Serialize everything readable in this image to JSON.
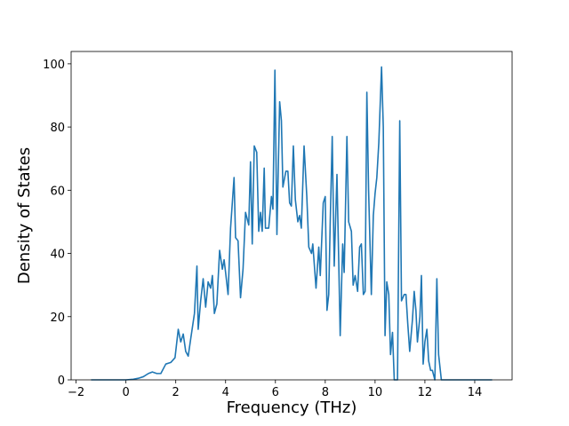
{
  "chart_data": {
    "type": "line",
    "x_label": "Frequency (THz)",
    "y_label": "Density of States",
    "x": [
      -1.4,
      -0.5,
      0,
      0.3,
      0.5,
      0.7,
      0.9,
      1.06,
      1.24,
      1.4,
      1.6,
      1.8,
      1.97,
      2.1,
      2.2,
      2.3,
      2.4,
      2.5,
      2.6,
      2.75,
      2.85,
      2.9,
      3.0,
      3.1,
      3.2,
      3.3,
      3.4,
      3.47,
      3.55,
      3.65,
      3.76,
      3.87,
      3.94,
      4.0,
      4.1,
      4.2,
      4.34,
      4.4,
      4.5,
      4.6,
      4.7,
      4.8,
      4.93,
      5.0,
      5.07,
      5.15,
      5.25,
      5.33,
      5.4,
      5.47,
      5.55,
      5.6,
      5.73,
      5.84,
      5.9,
      5.98,
      6.06,
      6.17,
      6.24,
      6.3,
      6.42,
      6.5,
      6.57,
      6.64,
      6.72,
      6.8,
      6.9,
      6.97,
      7.04,
      7.15,
      7.26,
      7.34,
      7.45,
      7.5,
      7.63,
      7.74,
      7.8,
      7.92,
      8.0,
      8.07,
      8.14,
      8.2,
      8.28,
      8.36,
      8.47,
      8.54,
      8.6,
      8.7,
      8.76,
      8.87,
      8.94,
      9.05,
      9.12,
      9.2,
      9.3,
      9.38,
      9.45,
      9.53,
      9.6,
      9.67,
      9.74,
      9.85,
      9.93,
      10.0,
      10.07,
      10.15,
      10.26,
      10.33,
      10.4,
      10.47,
      10.55,
      10.62,
      10.7,
      10.77,
      10.84,
      10.9,
      10.99,
      11.06,
      11.17,
      11.24,
      11.31,
      11.39,
      11.5,
      11.57,
      11.64,
      11.7,
      11.8,
      11.86,
      11.93,
      12.0,
      12.08,
      12.15,
      12.23,
      12.3,
      12.4,
      12.48,
      12.55,
      12.66,
      12.73,
      13.5,
      14.7
    ],
    "series": [
      {
        "name": "DOS",
        "color": "#1f77b4",
        "values": [
          0,
          0,
          0,
          0.2,
          0.5,
          1,
          2,
          2.5,
          2,
          2,
          5,
          5.5,
          7,
          16,
          12,
          14.5,
          9,
          7.5,
          13,
          21,
          36,
          16,
          25,
          32,
          23,
          31,
          29,
          33,
          21,
          24,
          41,
          35,
          38,
          34,
          27,
          48,
          64,
          45,
          44,
          26,
          35,
          53,
          49,
          69,
          43,
          74,
          72,
          47,
          53,
          47,
          67,
          48,
          48,
          58,
          54,
          98,
          46,
          88,
          82,
          61,
          66,
          66,
          56,
          55,
          74,
          57,
          50,
          52,
          48,
          74,
          58,
          42,
          40,
          43,
          29,
          42,
          33,
          56,
          58,
          22,
          27,
          50,
          77,
          36,
          65,
          38,
          14,
          43,
          34,
          77,
          50,
          47,
          30,
          33,
          28,
          42,
          43,
          27,
          28,
          91,
          60,
          27,
          52,
          59,
          64,
          75,
          99,
          80,
          14,
          31,
          27,
          8,
          15,
          0,
          0,
          0,
          82,
          25,
          27,
          27,
          18,
          9,
          19,
          28,
          22,
          12,
          20,
          33,
          5,
          12,
          16,
          6,
          3,
          3,
          0,
          32,
          8,
          0,
          0,
          0,
          0
        ]
      }
    ],
    "xlim": [
      -2.2,
      15.5
    ],
    "ylim": [
      0,
      103.9
    ],
    "xticks": [
      {
        "value": -2,
        "label": "−2"
      },
      0,
      2,
      4,
      6,
      8,
      10,
      12,
      14
    ],
    "yticks": [
      0,
      20,
      40,
      60,
      80,
      100
    ],
    "grid": false
  }
}
